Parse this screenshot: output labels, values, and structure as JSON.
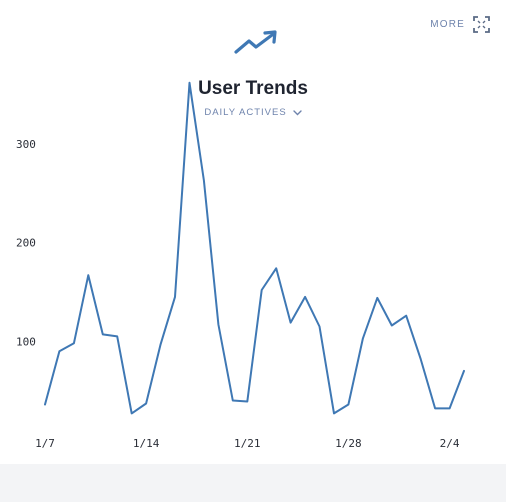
{
  "header": {
    "more_label": "MORE",
    "title": "User Trends",
    "metric_label": "DAILY ACTIVES"
  },
  "icons": {
    "trend": "trend-up-arrow-icon",
    "expand": "expand-icon",
    "chevron": "chevron-down-icon"
  },
  "colors": {
    "line": "#3f78b4",
    "accent": "#6e83ac",
    "footer": "#f3f4f6"
  },
  "chart_data": {
    "type": "line",
    "title": "User Trends",
    "xlabel": "",
    "ylabel": "",
    "ylim": [
      0,
      380
    ],
    "grid": false,
    "x": [
      "1/7",
      "1/8",
      "1/9",
      "1/10",
      "1/11",
      "1/12",
      "1/13",
      "1/14",
      "1/15",
      "1/16",
      "1/17",
      "1/18",
      "1/19",
      "1/20",
      "1/21",
      "1/22",
      "1/23",
      "1/24",
      "1/25",
      "1/26",
      "1/27",
      "1/28",
      "1/29",
      "1/30",
      "1/31",
      "2/1",
      "2/2",
      "2/3",
      "2/4",
      "2/5"
    ],
    "x_tick_labels": [
      "1/7",
      "1/14",
      "1/21",
      "1/28",
      "2/4"
    ],
    "y_ticks": [
      100,
      200,
      300
    ],
    "series": [
      {
        "values": [
          36,
          90,
          98,
          167,
          107,
          105,
          27,
          37,
          97,
          145,
          362,
          263,
          117,
          40,
          39,
          152,
          174,
          119,
          145,
          115,
          27,
          36,
          103,
          144,
          116,
          126,
          82,
          32,
          32,
          70
        ]
      }
    ]
  }
}
